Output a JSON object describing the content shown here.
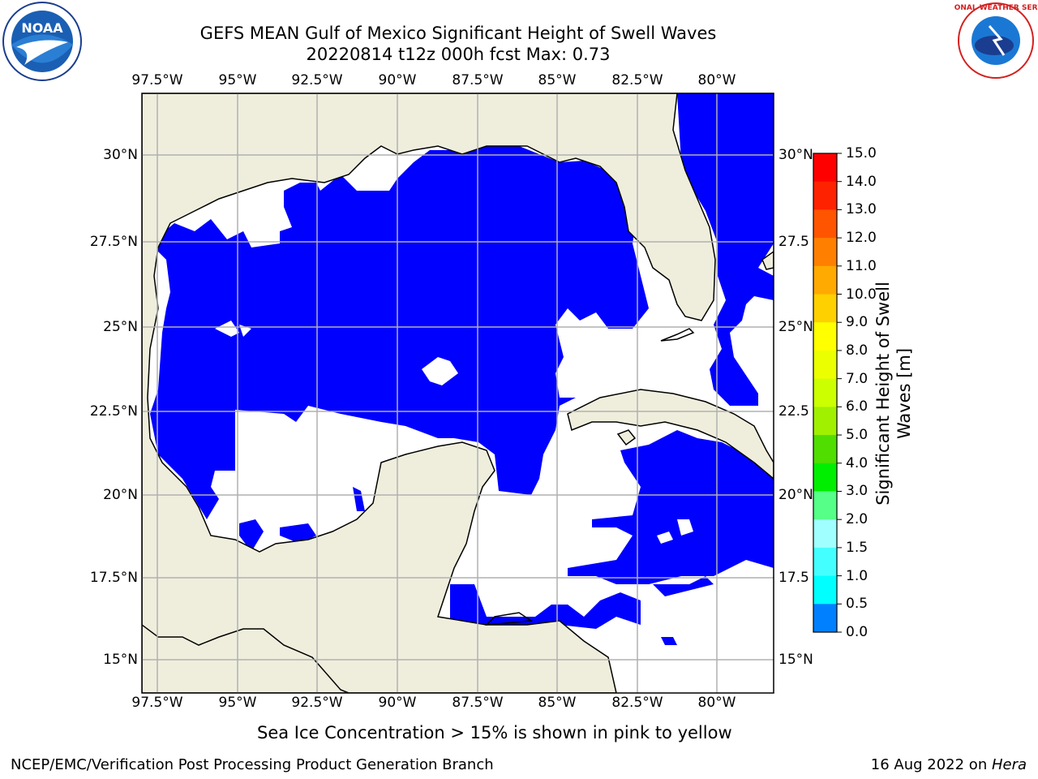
{
  "header": {
    "title_line1": "GEFS MEAN Gulf of Mexico Significant Height of Swell Waves",
    "title_line2": "20220814 t12z 000h fcst   Max: 0.73"
  },
  "logos": {
    "left": "noaa-logo",
    "right": "national-weather-service-logo",
    "left_text": "NOAA",
    "right_text": "NATIONAL WEATHER SERVICE"
  },
  "map": {
    "lon_ticks": [
      "97.5°W",
      "95°W",
      "92.5°W",
      "90°W",
      "87.5°W",
      "85°W",
      "82.5°W",
      "80°W"
    ],
    "lat_ticks": [
      "30°N",
      "27.5°N",
      "25°N",
      "22.5°N",
      "20°N",
      "17.5°N",
      "15°N"
    ],
    "right_lat_ticks": [
      "30°N",
      "27.5",
      "25°N",
      "22.5",
      "20°N",
      "17.5",
      "15°N"
    ],
    "colors": {
      "land": "#efeedd",
      "ocean_low": "#0000ff",
      "ocean_mid": "#0080ff",
      "grid": "#b0b0b0"
    }
  },
  "colorbar": {
    "label": "Significant Height of Swell Waves [m]",
    "label_line1": "Significant Height of Swell",
    "label_line2": "Waves [m]",
    "ticks": [
      "15.0",
      "14.0",
      "13.0",
      "12.0",
      "11.0",
      "10.0",
      "9.0",
      "8.0",
      "7.0",
      "6.0",
      "5.0",
      "4.0",
      "3.0",
      "2.0",
      "1.5",
      "1.0",
      "0.5",
      "0.0"
    ],
    "colors_top_to_bottom": [
      "#ff0000",
      "#ff2200",
      "#ff5500",
      "#ff8000",
      "#ffaa00",
      "#ffd000",
      "#ffff00",
      "#ecff00",
      "#ccff00",
      "#a0f000",
      "#50dd00",
      "#00ee00",
      "#55ff88",
      "#a0ffff",
      "#44ffff",
      "#00ffff",
      "#0080ff",
      "#0000ff"
    ]
  },
  "caption": "Sea Ice Concentration > 15% is shown in pink to yellow",
  "footer": {
    "left": "NCEP/EMC/Verification Post Processing Product Generation Branch",
    "date": "16 Aug 2022 on ",
    "machine": "Hera"
  }
}
